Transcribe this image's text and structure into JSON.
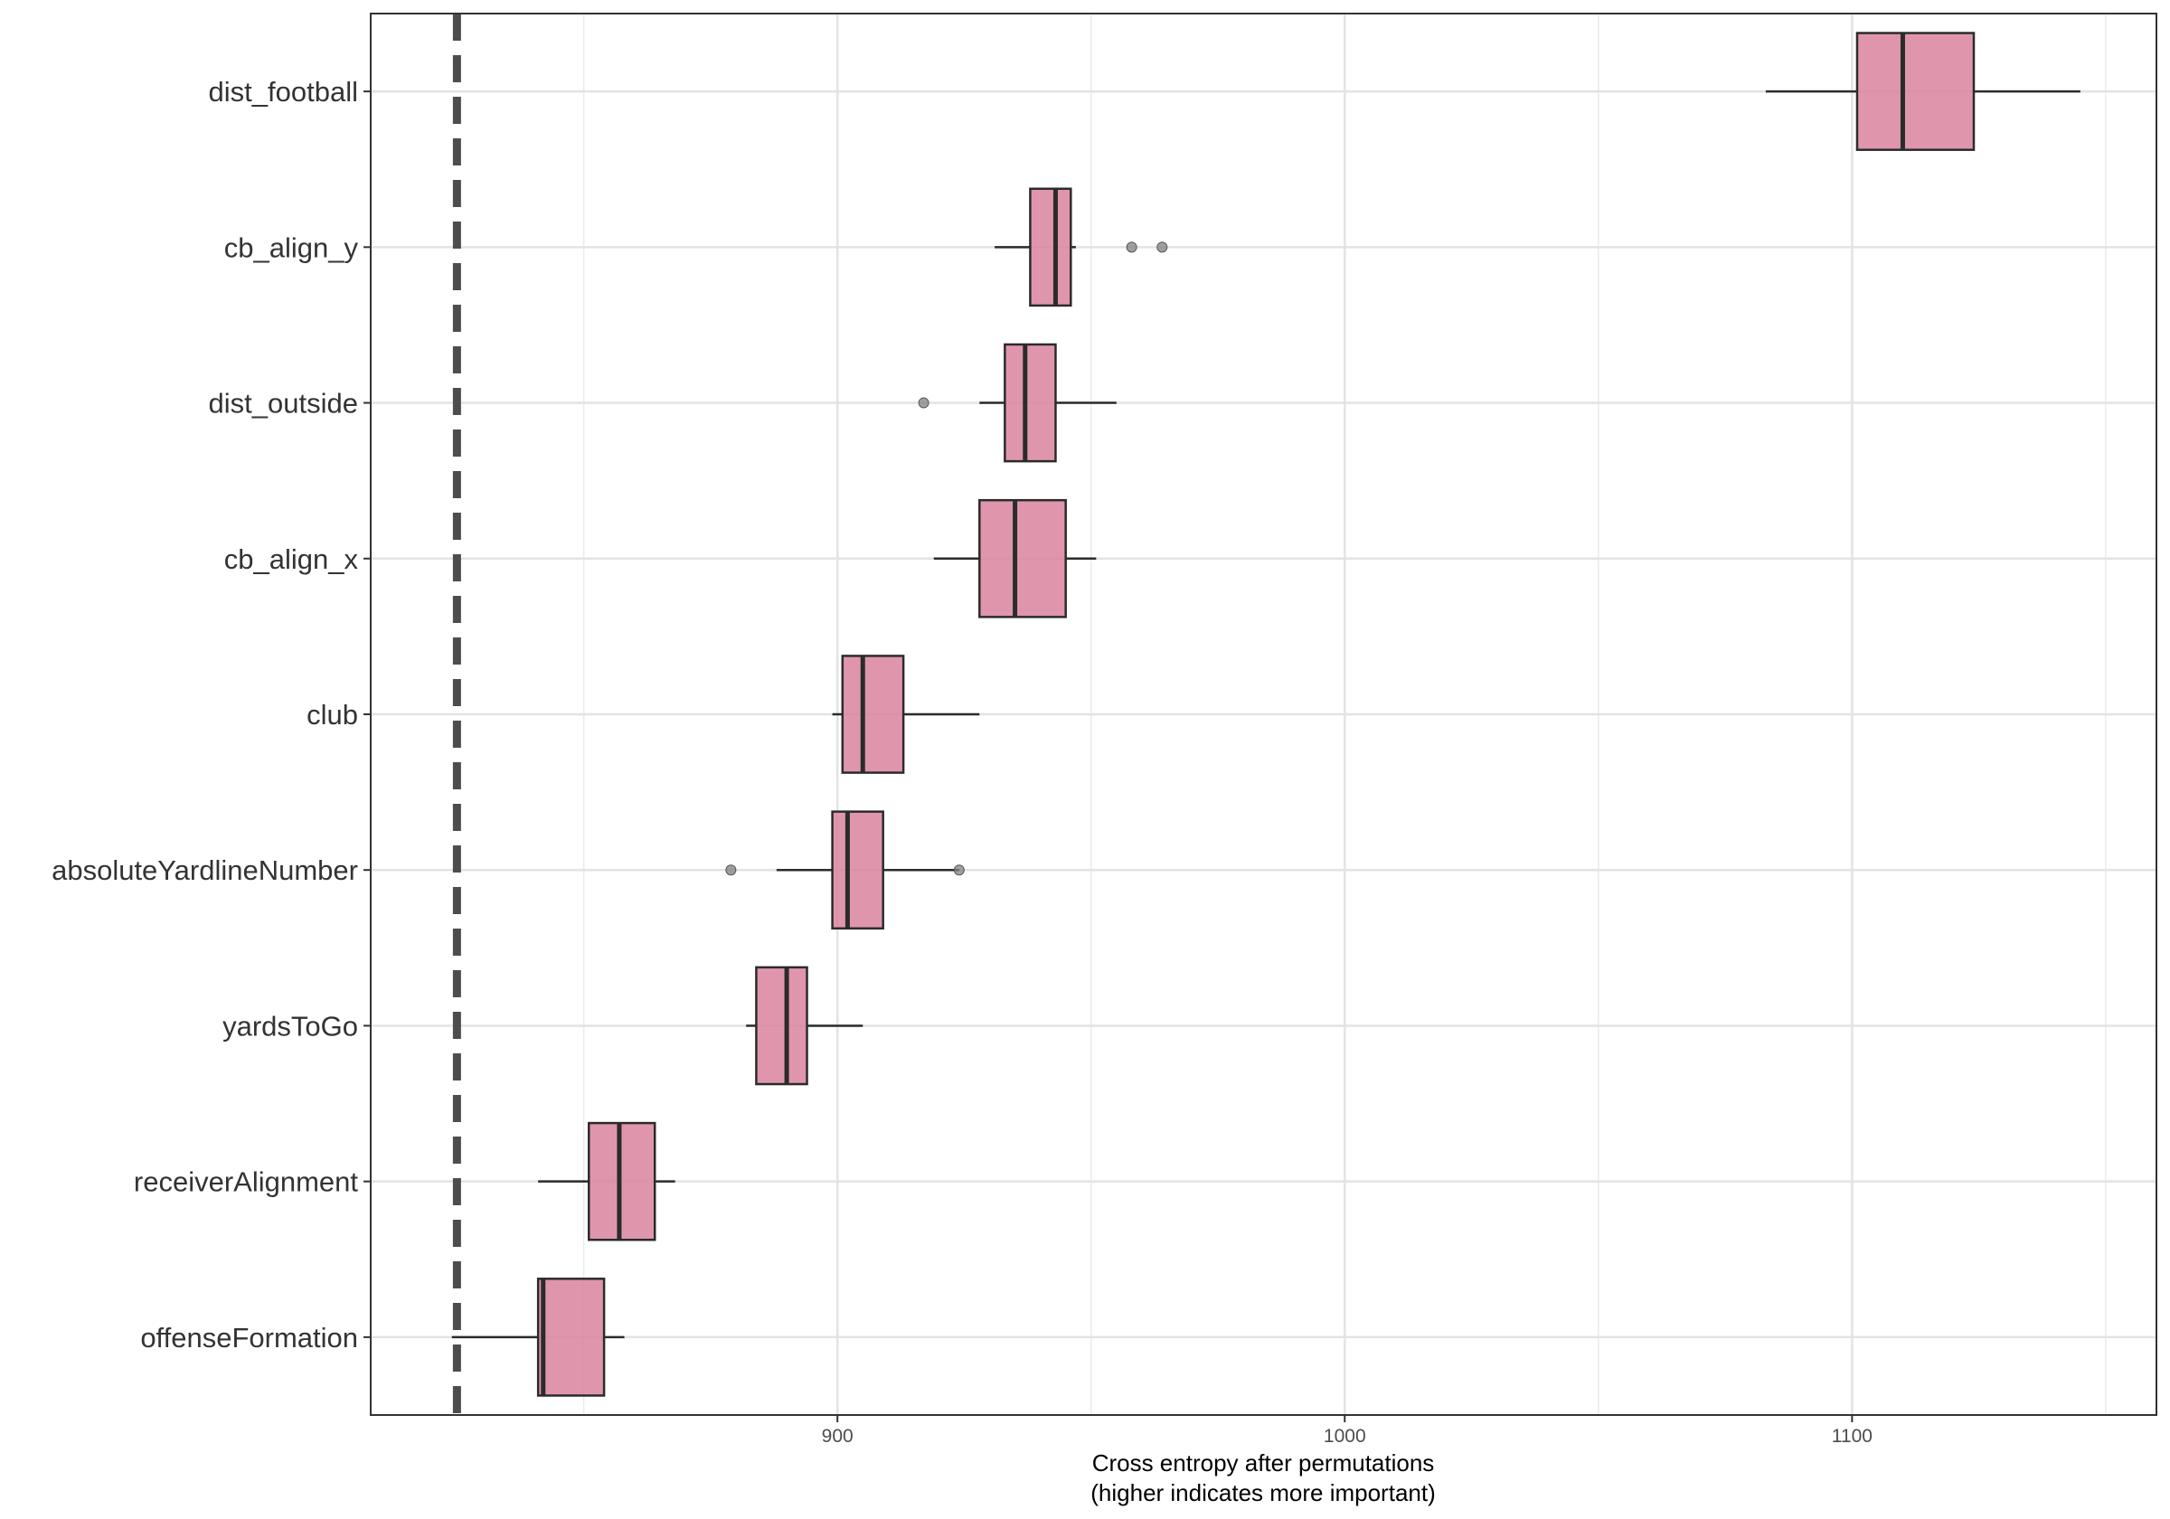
{
  "chart_data": {
    "type": "boxplot",
    "orientation": "horizontal",
    "title": "",
    "xlabel": [
      "Cross entropy after permutations",
      "(higher indicates more important)"
    ],
    "ylabel": "",
    "xlim": [
      808,
      1160
    ],
    "x_ticks": [
      900,
      1000,
      1100
    ],
    "grid": true,
    "baseline": 825,
    "box_color": "#d9849f",
    "box_outline": "#2b2b2b",
    "baseline_color": "#4d4d4d",
    "outlier_color": "#808080",
    "categories": [
      {
        "name": "dist_football",
        "whisker_low": 1083,
        "q1": 1101,
        "median": 1110,
        "q3": 1124,
        "whisker_high": 1145,
        "outliers": []
      },
      {
        "name": "cb_align_y",
        "whisker_low": 931,
        "q1": 938,
        "median": 943,
        "q3": 946,
        "whisker_high": 947,
        "outliers": [
          958,
          964
        ]
      },
      {
        "name": "dist_outside",
        "whisker_low": 928,
        "q1": 933,
        "median": 937,
        "q3": 943,
        "whisker_high": 955,
        "outliers": [
          917
        ]
      },
      {
        "name": "cb_align_x",
        "whisker_low": 919,
        "q1": 928,
        "median": 935,
        "q3": 945,
        "whisker_high": 951,
        "outliers": []
      },
      {
        "name": "club",
        "whisker_low": 899,
        "q1": 901,
        "median": 905,
        "q3": 913,
        "whisker_high": 928,
        "outliers": []
      },
      {
        "name": "absoluteYardlineNumber",
        "whisker_low": 888,
        "q1": 899,
        "median": 902,
        "q3": 909,
        "whisker_high": 924,
        "outliers": [
          879,
          924
        ]
      },
      {
        "name": "yardsToGo",
        "whisker_low": 882,
        "q1": 884,
        "median": 890,
        "q3": 894,
        "whisker_high": 905,
        "outliers": []
      },
      {
        "name": "receiverAlignment",
        "whisker_low": 841,
        "q1": 851,
        "median": 857,
        "q3": 864,
        "whisker_high": 868,
        "outliers": []
      },
      {
        "name": "offenseFormation",
        "whisker_low": 824,
        "q1": 841,
        "median": 842,
        "q3": 854,
        "whisker_high": 858,
        "outliers": []
      }
    ]
  }
}
